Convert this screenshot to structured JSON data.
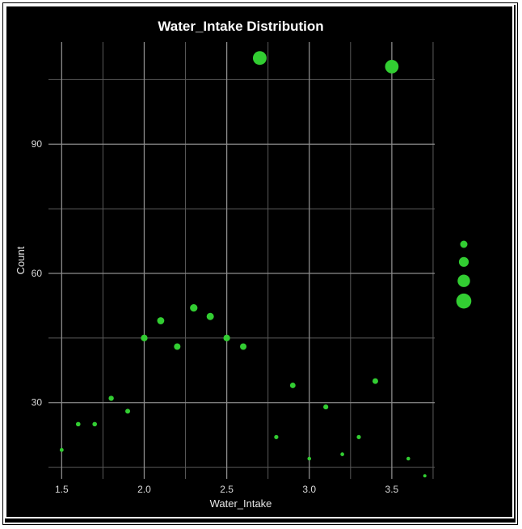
{
  "chart_data": {
    "type": "scatter",
    "title": "Water_Intake Distribution",
    "xlabel": "Water_Intake",
    "ylabel": "Count",
    "xlim": [
      1.42,
      3.76
    ],
    "ylim": [
      12.3,
      113.7
    ],
    "x_ticks": [
      1.5,
      2.0,
      2.5,
      3.0,
      3.5
    ],
    "x_tick_labels": [
      "1.5",
      "2.0",
      "2.5",
      "3.0",
      "3.5"
    ],
    "x_minor_gridlines": [
      1.75,
      2.25,
      2.75,
      3.25,
      3.75
    ],
    "y_ticks": [
      30,
      60,
      90
    ],
    "y_tick_labels": [
      "30",
      "60",
      "90"
    ],
    "y_minor_gridlines": [
      15,
      45,
      75,
      105
    ],
    "grid": true,
    "background": "#000000",
    "point_color": "#32cd32",
    "size_legend": "right",
    "size_legend_levels": 4,
    "points": [
      {
        "x": 1.5,
        "y": 19
      },
      {
        "x": 1.6,
        "y": 25
      },
      {
        "x": 1.7,
        "y": 25
      },
      {
        "x": 1.8,
        "y": 31
      },
      {
        "x": 1.9,
        "y": 28
      },
      {
        "x": 2.0,
        "y": 45
      },
      {
        "x": 2.1,
        "y": 49
      },
      {
        "x": 2.2,
        "y": 43
      },
      {
        "x": 2.3,
        "y": 52
      },
      {
        "x": 2.4,
        "y": 50
      },
      {
        "x": 2.5,
        "y": 45
      },
      {
        "x": 2.6,
        "y": 43
      },
      {
        "x": 2.7,
        "y": 110
      },
      {
        "x": 2.8,
        "y": 22
      },
      {
        "x": 2.9,
        "y": 34
      },
      {
        "x": 3.0,
        "y": 17
      },
      {
        "x": 3.1,
        "y": 29
      },
      {
        "x": 3.2,
        "y": 18
      },
      {
        "x": 3.3,
        "y": 22
      },
      {
        "x": 3.4,
        "y": 35
      },
      {
        "x": 3.5,
        "y": 108
      },
      {
        "x": 3.6,
        "y": 17
      },
      {
        "x": 3.7,
        "y": 13
      }
    ]
  }
}
